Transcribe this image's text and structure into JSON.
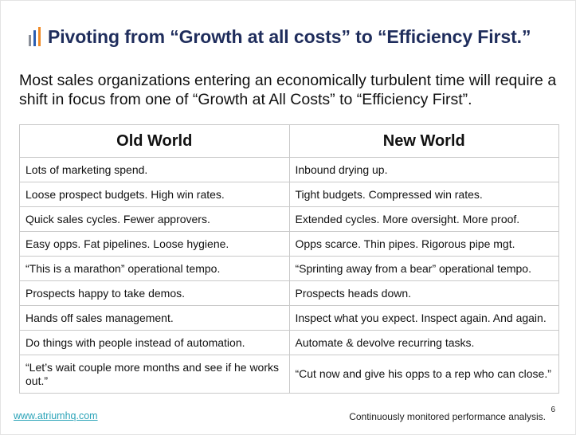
{
  "header": {
    "title": "Pivoting from “Growth at all costs” to “Efficiency First.”"
  },
  "intro": "Most sales organizations entering an economically turbulent time will require a shift in focus from one of “Growth at All Costs” to “Efficiency First”.",
  "table": {
    "columns": [
      "Old World",
      "New World"
    ],
    "rows": [
      [
        "Lots of marketing spend.",
        "Inbound drying up."
      ],
      [
        "Loose prospect budgets. High win rates.",
        "Tight budgets. Compressed win rates."
      ],
      [
        "Quick sales cycles. Fewer approvers.",
        "Extended cycles. More oversight. More proof."
      ],
      [
        "Easy opps. Fat pipelines. Loose hygiene.",
        "Opps scarce. Thin pipes. Rigorous pipe mgt."
      ],
      [
        "“This is a marathon” operational tempo.",
        "“Sprinting away from a bear” operational tempo."
      ],
      [
        "Prospects happy to take demos.",
        "Prospects heads down."
      ],
      [
        "Hands off sales management.",
        "Inspect what you expect. Inspect again. And again."
      ],
      [
        "Do things with people instead of automation.",
        "Automate & devolve recurring tasks."
      ],
      [
        "“Let’s wait couple more months and see if he works out.”",
        "“Cut now and give his opps to a rep who can close.”"
      ]
    ]
  },
  "footer": {
    "link": "www.atriumhq.com",
    "note": "Continuously monitored performance analysis.",
    "page": "6"
  }
}
